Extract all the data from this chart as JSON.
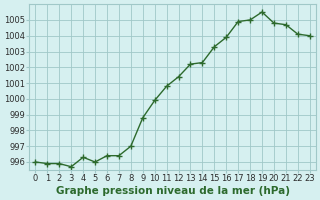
{
  "x": [
    0,
    1,
    2,
    3,
    4,
    5,
    6,
    7,
    8,
    9,
    10,
    11,
    12,
    13,
    14,
    15,
    16,
    17,
    18,
    19,
    20,
    21,
    22,
    23
  ],
  "y": [
    996.0,
    995.9,
    995.9,
    995.7,
    996.3,
    996.0,
    996.4,
    996.4,
    997.0,
    998.8,
    999.9,
    1000.8,
    1001.4,
    1002.2,
    1002.3,
    1003.3,
    1003.9,
    1004.9,
    1005.0,
    1005.5,
    1004.8,
    1004.7,
    1004.1,
    1004.0
  ],
  "line_color": "#2d6a2d",
  "marker_color": "#2d6a2d",
  "bg_color": "#d6f0f0",
  "grid_color": "#a0c8c8",
  "xlabel": "Graphe pression niveau de la mer (hPa)",
  "ylim_min": 995.5,
  "ylim_max": 1006.0,
  "xlim_min": -0.5,
  "xlim_max": 23.5,
  "yticks": [
    996,
    997,
    998,
    999,
    1000,
    1001,
    1002,
    1003,
    1004,
    1005
  ],
  "xticks": [
    0,
    1,
    2,
    3,
    4,
    5,
    6,
    7,
    8,
    9,
    10,
    11,
    12,
    13,
    14,
    15,
    16,
    17,
    18,
    19,
    20,
    21,
    22,
    23
  ],
  "tick_fontsize": 6,
  "xlabel_fontsize": 7.5
}
